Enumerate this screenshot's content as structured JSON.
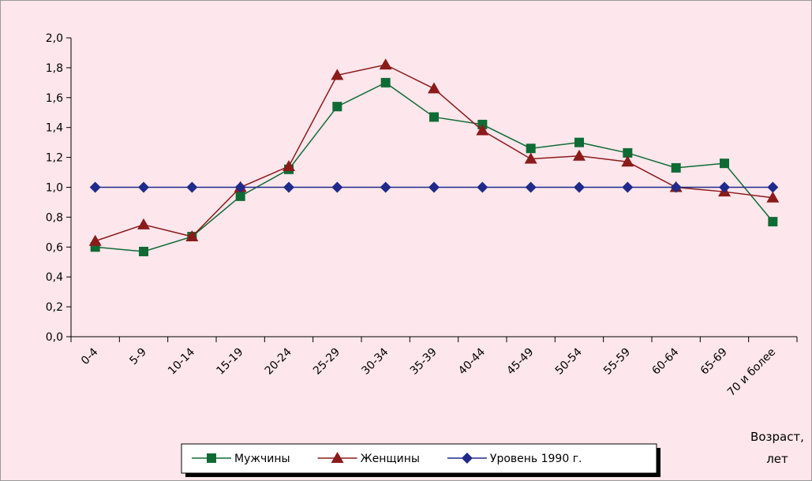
{
  "chart_data": {
    "type": "line",
    "categories": [
      "0-4",
      "5-9",
      "10-14",
      "15-19",
      "20-24",
      "25-29",
      "30-34",
      "35-39",
      "40-44",
      "45-49",
      "50-54",
      "55-59",
      "60-64",
      "65-69",
      "70 и более"
    ],
    "x_label": "Возраст, лет",
    "series": [
      {
        "name": "Мужчины",
        "color": "#0f6b34",
        "marker": "square",
        "values": [
          0.6,
          0.57,
          0.67,
          0.94,
          1.12,
          1.54,
          1.7,
          1.47,
          1.42,
          1.26,
          1.3,
          1.23,
          1.13,
          1.16,
          0.77
        ]
      },
      {
        "name": "Женщины",
        "color": "#8b1a1a",
        "marker": "triangle",
        "values": [
          0.64,
          0.75,
          0.67,
          1.0,
          1.14,
          1.75,
          1.82,
          1.66,
          1.38,
          1.19,
          1.21,
          1.17,
          1.0,
          0.97,
          0.93
        ]
      },
      {
        "name": "Уровень 1990 г.",
        "color": "#1f2a8a",
        "marker": "diamond",
        "values": [
          1.0,
          1.0,
          1.0,
          1.0,
          1.0,
          1.0,
          1.0,
          1.0,
          1.0,
          1.0,
          1.0,
          1.0,
          1.0,
          1.0,
          1.0
        ]
      }
    ],
    "ylim": [
      0,
      2
    ],
    "yticks": [
      {
        "value": 0,
        "label": "0,0"
      },
      {
        "value": 0.2,
        "label": "0,2"
      },
      {
        "value": 0.4,
        "label": "0,4"
      },
      {
        "value": 0.6,
        "label": "0,6"
      },
      {
        "value": 0.8,
        "label": "0,8"
      },
      {
        "value": 1,
        "label": "1,0"
      },
      {
        "value": 1.2,
        "label": "1,2"
      },
      {
        "value": 1.4,
        "label": "1,4"
      },
      {
        "value": 1.6,
        "label": "1,6"
      },
      {
        "value": 1.8,
        "label": "1,8"
      },
      {
        "value": 2,
        "label": "2,0"
      }
    ],
    "legend": "bottom",
    "background": "#fde6ec"
  }
}
